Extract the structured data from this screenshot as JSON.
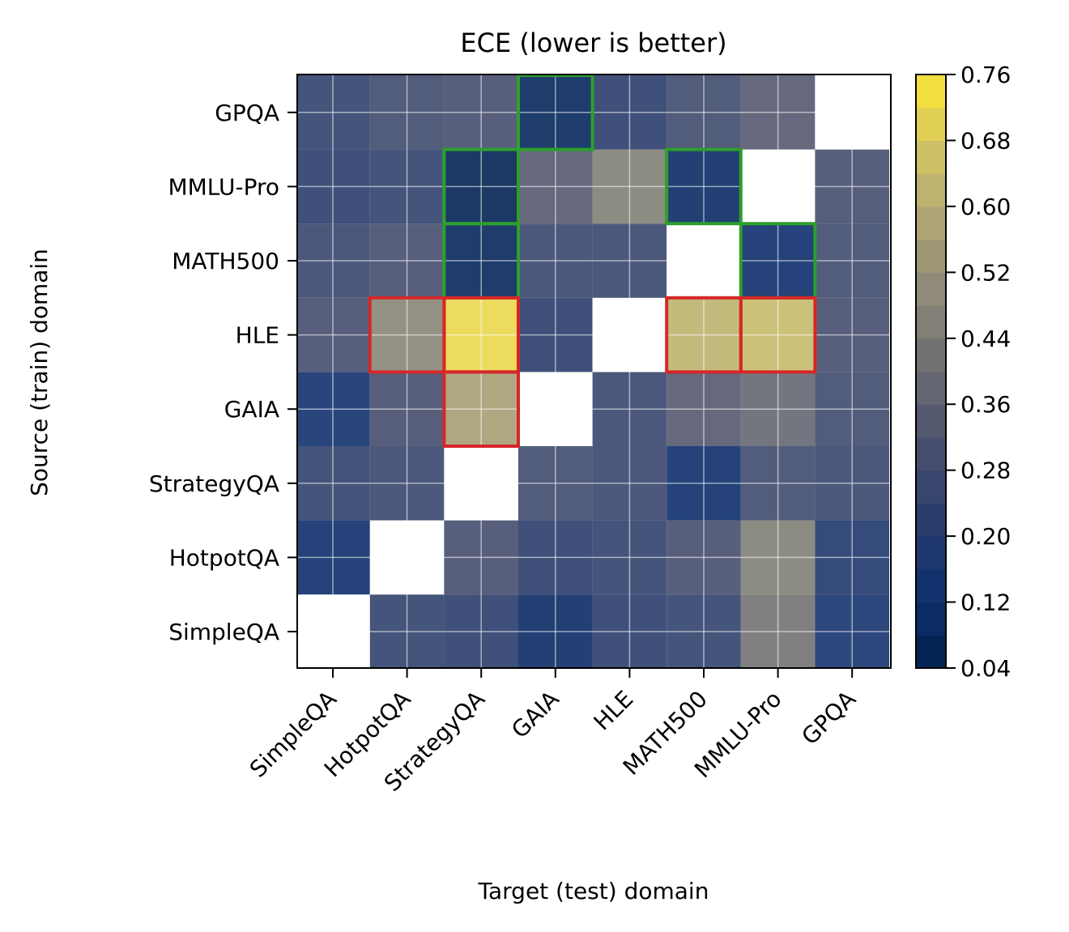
{
  "chart_data": {
    "type": "heatmap",
    "title": "ECE (lower is better)",
    "xlabel": "Target (test) domain",
    "ylabel": "Source (train) domain",
    "x_categories": [
      "SimpleQA",
      "HotpotQA",
      "StrategyQA",
      "GAIA",
      "HLE",
      "MATH500",
      "MMLU-Pro",
      "GPQA"
    ],
    "y_categories": [
      "SimpleQA",
      "HotpotQA",
      "StrategyQA",
      "GAIA",
      "HLE",
      "MATH500",
      "MMLU-Pro",
      "GPQA"
    ],
    "colormap": "cividis",
    "colorbar": {
      "min": 0.04,
      "max": 0.76,
      "ticks": [
        "0.04",
        "0.12",
        "0.20",
        "0.28",
        "0.36",
        "0.44",
        "0.52",
        "0.60",
        "0.68",
        "0.76"
      ]
    },
    "values": [
      [
        null,
        0.24,
        0.22,
        0.1,
        0.22,
        0.24,
        0.42,
        0.15
      ],
      [
        0.12,
        null,
        0.3,
        0.22,
        0.24,
        0.3,
        0.46,
        0.18
      ],
      [
        0.24,
        0.26,
        null,
        0.28,
        0.26,
        0.12,
        0.28,
        0.26
      ],
      [
        0.14,
        0.3,
        0.56,
        null,
        0.26,
        0.34,
        0.38,
        0.28
      ],
      [
        0.3,
        0.48,
        0.72,
        0.22,
        null,
        0.62,
        0.64,
        0.3
      ],
      [
        0.26,
        0.3,
        0.08,
        0.26,
        0.26,
        null,
        0.12,
        0.28
      ],
      [
        0.22,
        0.24,
        0.06,
        0.34,
        0.46,
        0.1,
        null,
        0.3
      ],
      [
        0.24,
        0.28,
        0.3,
        0.08,
        0.22,
        0.28,
        0.34,
        null
      ]
    ],
    "highlights": {
      "green": [
        [
          7,
          3
        ],
        [
          6,
          2
        ],
        [
          5,
          2
        ],
        [
          6,
          5
        ],
        [
          5,
          6
        ]
      ],
      "red": [
        [
          4,
          1
        ],
        [
          4,
          2
        ],
        [
          3,
          2
        ],
        [
          4,
          5
        ],
        [
          4,
          6
        ]
      ]
    }
  }
}
